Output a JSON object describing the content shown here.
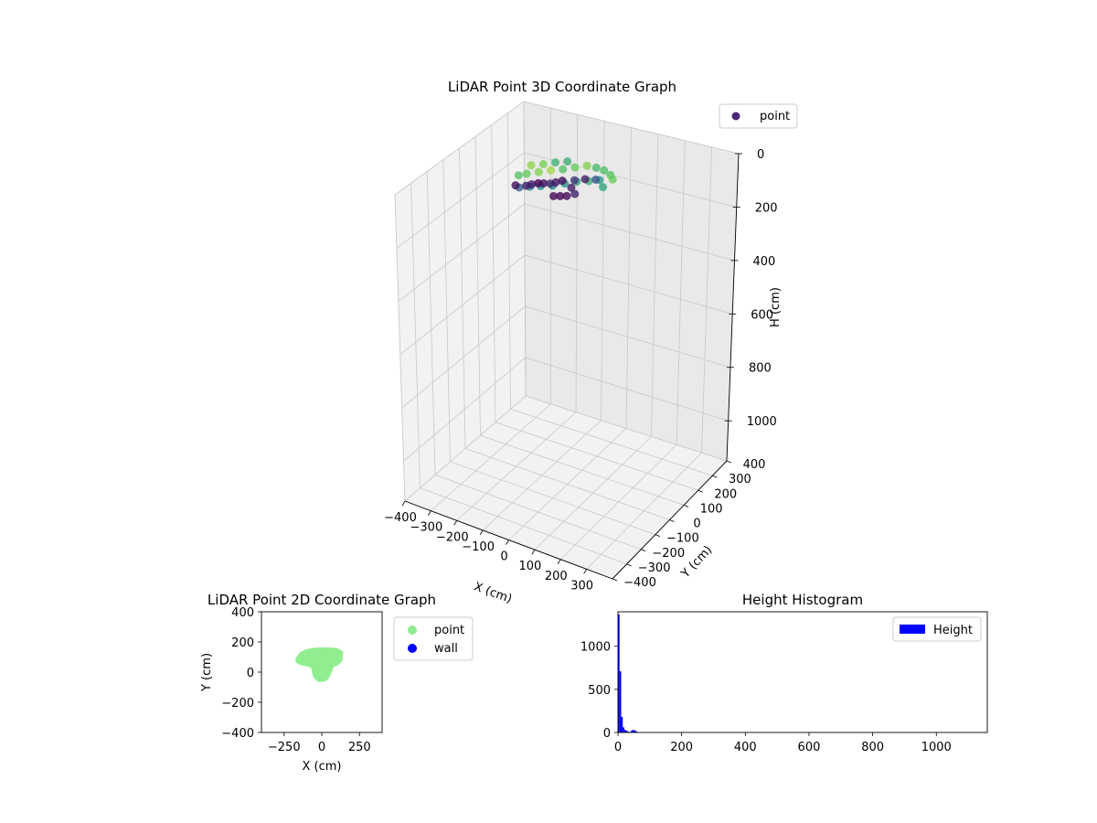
{
  "chart_data": [
    {
      "type": "scatter3d",
      "title": "LiDAR Point 3D Coordinate Graph",
      "xlabel": "X (cm)",
      "ylabel": "Y (cm)",
      "zlabel": "H (cm)",
      "xlim": [
        -400,
        400
      ],
      "ylim": [
        -400,
        400
      ],
      "zlim": [
        1150,
        0
      ],
      "xticks": [
        -400,
        -300,
        -200,
        -100,
        0,
        100,
        200,
        300
      ],
      "yticks": [
        -400,
        -300,
        -200,
        -100,
        0,
        100,
        200,
        300,
        400
      ],
      "zticks": [
        0,
        200,
        400,
        600,
        800,
        1000
      ],
      "grid": true,
      "legend": {
        "position": "top-right",
        "entries": [
          "point"
        ]
      },
      "colormap": "viridis",
      "legend_color": "#482878",
      "series": [
        {
          "name": "point",
          "points": [
            [
              -150,
              -80,
              20,
              0.05
            ],
            [
              -120,
              -60,
              22,
              0.1
            ],
            [
              -90,
              -30,
              18,
              0.0
            ],
            [
              -60,
              0,
              25,
              0.15
            ],
            [
              -30,
              30,
              20,
              0.05
            ],
            [
              0,
              60,
              24,
              0.2
            ],
            [
              30,
              80,
              20,
              0.1
            ],
            [
              60,
              100,
              22,
              0.3
            ],
            [
              -130,
              -90,
              15,
              0.35
            ],
            [
              -100,
              -70,
              12,
              0.45
            ],
            [
              -70,
              -50,
              10,
              0.55
            ],
            [
              -40,
              -20,
              14,
              0.5
            ],
            [
              -10,
              10,
              12,
              0.6
            ],
            [
              20,
              40,
              10,
              0.65
            ],
            [
              50,
              70,
              14,
              0.7
            ],
            [
              80,
              90,
              10,
              0.6
            ],
            [
              -160,
              -40,
              8,
              0.8
            ],
            [
              -140,
              -20,
              6,
              0.85
            ],
            [
              -110,
              10,
              5,
              0.9
            ],
            [
              -80,
              40,
              4,
              0.95
            ],
            [
              -50,
              70,
              6,
              0.8
            ],
            [
              -20,
              100,
              5,
              0.85
            ],
            [
              10,
              130,
              4,
              0.9
            ],
            [
              40,
              140,
              6,
              0.75
            ],
            [
              -60,
              120,
              8,
              0.7
            ],
            [
              -90,
              90,
              6,
              0.72
            ],
            [
              -120,
              60,
              7,
              0.88
            ],
            [
              -150,
              30,
              5,
              0.92
            ],
            [
              70,
              140,
              5,
              0.78
            ],
            [
              100,
              130,
              6,
              0.82
            ],
            [
              120,
              110,
              4,
              0.86
            ],
            [
              110,
              60,
              9,
              0.65
            ],
            [
              0,
              -40,
              28,
              0.02
            ],
            [
              -20,
              -50,
              30,
              0.04
            ],
            [
              20,
              -30,
              26,
              0.03
            ],
            [
              40,
              -10,
              22,
              0.12
            ],
            [
              -80,
              -10,
              26,
              0.06
            ],
            [
              -50,
              20,
              28,
              0.08
            ],
            [
              -110,
              -40,
              24,
              0.09
            ],
            [
              10,
              20,
              26,
              0.1
            ]
          ]
        }
      ]
    },
    {
      "type": "scatter",
      "title": "LiDAR Point 2D Coordinate Graph",
      "xlabel": "X (cm)",
      "ylabel": "Y (cm)",
      "xlim": [
        -400,
        400
      ],
      "ylim": [
        -400,
        400
      ],
      "xticks": [
        -250,
        0,
        250
      ],
      "yticks": [
        -400,
        -200,
        0,
        200,
        400
      ],
      "legend": {
        "position": "outside-right",
        "entries": [
          "point",
          "wall"
        ]
      },
      "series": [
        {
          "name": "point",
          "color": "#90ee90",
          "outline": [
            [
              -160,
              90
            ],
            [
              -140,
              120
            ],
            [
              -100,
              140
            ],
            [
              -40,
              150
            ],
            [
              40,
              152
            ],
            [
              100,
              148
            ],
            [
              130,
              130
            ],
            [
              125,
              80
            ],
            [
              100,
              55
            ],
            [
              70,
              45
            ],
            [
              55,
              5
            ],
            [
              40,
              -30
            ],
            [
              20,
              -50
            ],
            [
              -20,
              -52
            ],
            [
              -45,
              -30
            ],
            [
              -55,
              10
            ],
            [
              -60,
              40
            ],
            [
              -100,
              50
            ],
            [
              -145,
              60
            ],
            [
              -163,
              75
            ]
          ]
        },
        {
          "name": "wall",
          "color": "#0000ff",
          "points": []
        }
      ]
    },
    {
      "type": "bar",
      "subtype": "histogram",
      "title": "Height Histogram",
      "xlim": [
        0,
        1160
      ],
      "ylim": [
        0,
        1400
      ],
      "xticks": [
        0,
        200,
        400,
        600,
        800,
        1000
      ],
      "yticks": [
        0,
        500,
        1000
      ],
      "legend": {
        "position": "top-right",
        "entries": [
          "Height"
        ]
      },
      "series": [
        {
          "name": "Height",
          "color": "#0000ff",
          "bin_width": 5,
          "bins": [
            0,
            5,
            10,
            15,
            20,
            25,
            30,
            35,
            40,
            45,
            50,
            55
          ],
          "values": [
            1370,
            710,
            180,
            60,
            30,
            20,
            10,
            5,
            20,
            30,
            25,
            15
          ]
        }
      ]
    }
  ]
}
